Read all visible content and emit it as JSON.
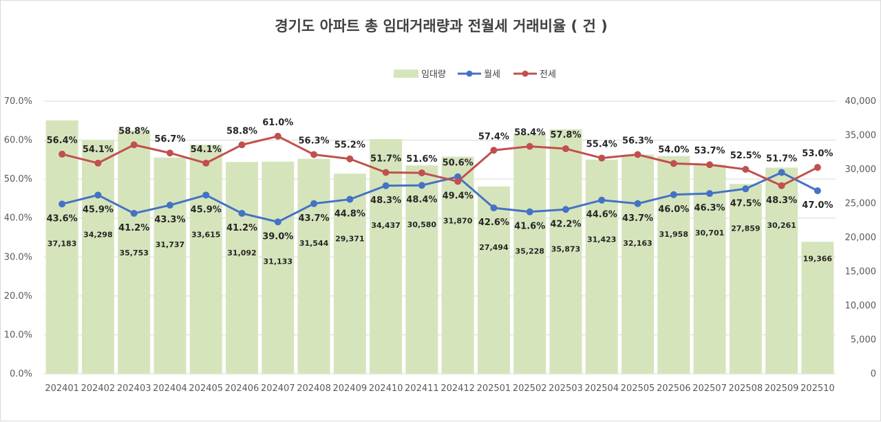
{
  "chart_data": {
    "type": "bar+line",
    "title": "경기도 아파트 총 임대거래량과 전월세 거래비율 ( 건 )",
    "categories": [
      "202401",
      "202402",
      "202403",
      "202404",
      "202405",
      "202406",
      "202407",
      "202408",
      "202409",
      "202410",
      "202411",
      "202412",
      "202501",
      "202502",
      "202503",
      "202504",
      "202505",
      "202506",
      "202507",
      "202508",
      "202509",
      "202510"
    ],
    "bar_series": {
      "name": "임대량",
      "axis": "right",
      "values": [
        37183,
        34298,
        35753,
        31737,
        33615,
        31092,
        31133,
        31544,
        29371,
        34437,
        30580,
        31870,
        27494,
        35228,
        35873,
        31423,
        32163,
        31958,
        30701,
        27859,
        30261,
        19366
      ],
      "labels": [
        "37,183",
        "34,298",
        "35,753",
        "31,737",
        "33,615",
        "31,092",
        "31,133",
        "31,544",
        "29,371",
        "34,437",
        "30,580",
        "31,870",
        "27,494",
        "35,228",
        "35,873",
        "31,423",
        "32,163",
        "31,958",
        "30,701",
        "27,859",
        "30,261",
        "19,366"
      ],
      "color": "#d6e4bc"
    },
    "line_series": [
      {
        "name": "월세",
        "axis": "left",
        "color": "#4472c4",
        "values": [
          43.6,
          45.9,
          41.2,
          43.3,
          45.9,
          41.2,
          39.0,
          43.7,
          44.8,
          48.3,
          48.4,
          50.6,
          42.6,
          41.6,
          42.2,
          44.6,
          43.7,
          46.0,
          46.3,
          47.5,
          51.7,
          47.0
        ],
        "labels": [
          "43.6%",
          "45.9%",
          "41.2%",
          "43.3%",
          "45.9%",
          "41.2%",
          "39.0%",
          "43.7%",
          "44.8%",
          "48.3%",
          "48.4%",
          "50.6%",
          "42.6%",
          "41.6%",
          "42.2%",
          "44.6%",
          "43.7%",
          "46.0%",
          "46.3%",
          "47.5%",
          "51.7%",
          "47.0%"
        ]
      },
      {
        "name": "전세",
        "axis": "left",
        "color": "#c0504d",
        "values": [
          56.4,
          54.1,
          58.8,
          56.7,
          54.1,
          58.8,
          61.0,
          56.3,
          55.2,
          51.7,
          51.6,
          49.4,
          57.4,
          58.4,
          57.8,
          55.4,
          56.3,
          54.0,
          53.7,
          52.5,
          48.3,
          53.0
        ],
        "labels": [
          "56.4%",
          "54.1%",
          "58.8%",
          "56.7%",
          "54.1%",
          "58.8%",
          "61.0%",
          "56.3%",
          "55.2%",
          "51.7%",
          "51.6%",
          "49.4%",
          "57.4%",
          "58.4%",
          "57.8%",
          "55.4%",
          "56.3%",
          "54.0%",
          "53.7%",
          "52.5%",
          "48.3%",
          "53.0%"
        ]
      }
    ],
    "left_axis": {
      "min": 0,
      "max": 70,
      "ticks": [
        "0.0%",
        "10.0%",
        "20.0%",
        "30.0%",
        "40.0%",
        "50.0%",
        "60.0%",
        "70.0%"
      ]
    },
    "right_axis": {
      "min": 0,
      "max": 40000,
      "ticks": [
        "0",
        "5,000",
        "10,000",
        "15,000",
        "20,000",
        "25,000",
        "30,000",
        "35,000",
        "40,000"
      ]
    },
    "legend": {
      "position": "top-center",
      "items": [
        "임대량",
        "월세",
        "전세"
      ]
    },
    "grid": true
  }
}
